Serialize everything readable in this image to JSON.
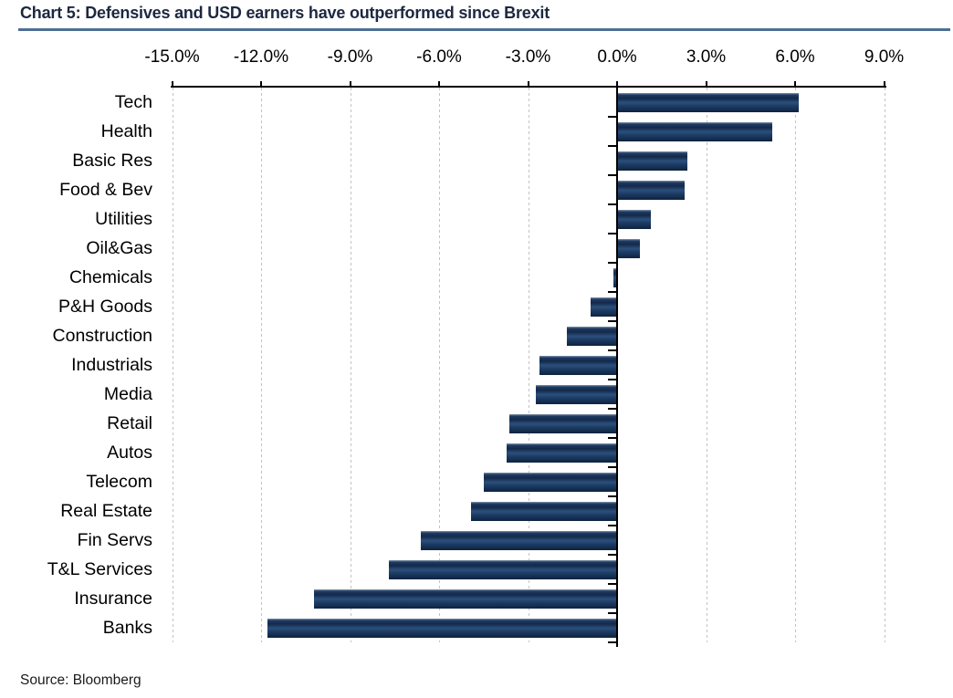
{
  "chart_data": {
    "type": "bar",
    "orientation": "horizontal",
    "title": "Chart 5: Defensives and USD earners have outperformed since Brexit",
    "source": "Source: Bloomberg",
    "unit": "%",
    "categories": [
      "Tech",
      "Health",
      "Basic Res",
      "Food & Bev",
      "Utilities",
      "Oil&Gas",
      "Chemicals",
      "P&H Goods",
      "Construction",
      "Industrials",
      "Media",
      "Retail",
      "Autos",
      "Telecom",
      "Real Estate",
      "Fin Servs",
      "T&L Services",
      "Insurance",
      "Banks"
    ],
    "values": [
      6.1,
      5.2,
      2.35,
      2.25,
      1.1,
      0.75,
      -0.1,
      -0.85,
      -1.65,
      -2.6,
      -2.7,
      -3.6,
      -3.7,
      -4.45,
      -4.9,
      -6.6,
      -7.65,
      -10.2,
      -11.75
    ],
    "xlim": [
      -15,
      9
    ],
    "x_ticks": [
      {
        "value": -15,
        "label": "-15.0%"
      },
      {
        "value": -12,
        "label": "-12.0%"
      },
      {
        "value": -9,
        "label": "-9.0%"
      },
      {
        "value": -6,
        "label": "-6.0%"
      },
      {
        "value": -3,
        "label": "-3.0%"
      },
      {
        "value": 0,
        "label": "0.0%"
      },
      {
        "value": 3,
        "label": "3.0%"
      },
      {
        "value": 6,
        "label": "6.0%"
      },
      {
        "value": 9,
        "label": "9.0%"
      }
    ],
    "grid": "vertical-dashed",
    "legend": "none",
    "colors": {
      "bar": "#14294a",
      "bar_highlight": "#2b507c",
      "axis": "#000000",
      "gridline": "#c2c2c2",
      "title": "#1c2840",
      "title_rule": "#4d6f94",
      "background": "#ffffff"
    }
  }
}
